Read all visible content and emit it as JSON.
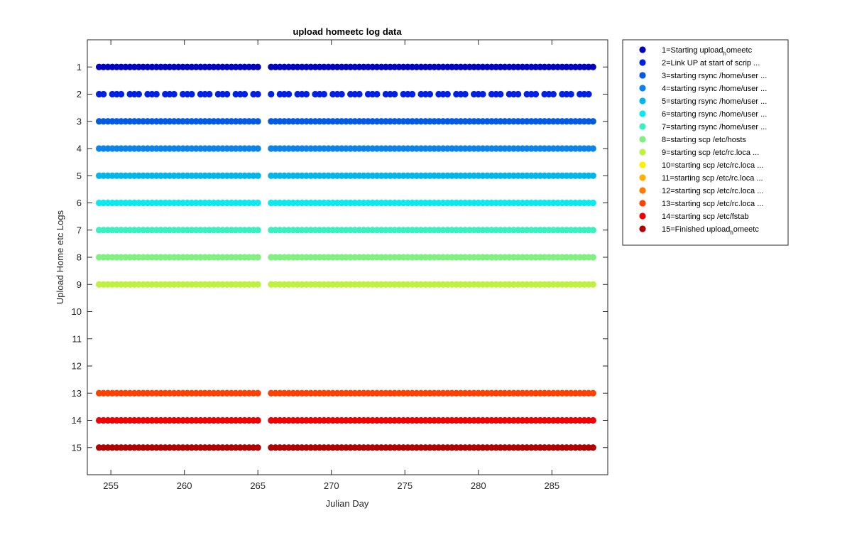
{
  "chart_data": {
    "type": "scatter",
    "title": "upload homeetc log data",
    "xlabel": "Julian Day",
    "ylabel": "Upload Home etc Logs",
    "xlim": [
      253.4,
      288.8
    ],
    "ylim": [
      0,
      16
    ],
    "y_reversed": true,
    "x_ticks": [
      255,
      260,
      265,
      270,
      275,
      280,
      285
    ],
    "y_ticks": [
      1,
      2,
      3,
      4,
      5,
      6,
      7,
      8,
      9,
      10,
      11,
      12,
      13,
      14,
      15
    ],
    "grid": false,
    "legend_position": "outside-top-right",
    "x_start": 254.2,
    "x_end": 287.9,
    "x_step": 0.3,
    "x_gaps": [
      [
        265.2,
        265.9
      ]
    ],
    "series": [
      {
        "name": "1=Starting upload_homeetc",
        "y": 1,
        "color": "#0000bf"
      },
      {
        "name": "2=Link UP at start of scrip ...",
        "y": 2,
        "color": "#0020e6",
        "sparse": true
      },
      {
        "name": "3=starting rsync /home/user ...",
        "y": 3,
        "color": "#005ae8"
      },
      {
        "name": "4=starting rsync /home/user ...",
        "y": 4,
        "color": "#0a84ea"
      },
      {
        "name": "5=starting rsync /home/user ...",
        "y": 5,
        "color": "#00b6ea"
      },
      {
        "name": "6=starting rsync /home/user ...",
        "y": 6,
        "color": "#0ae8f0"
      },
      {
        "name": "7=starting rsync /home/user ...",
        "y": 7,
        "color": "#38f0c0"
      },
      {
        "name": "8=starting scp /etc/hosts",
        "y": 8,
        "color": "#80f080"
      },
      {
        "name": "9=starting scp /etc/rc.loca ...",
        "y": 9,
        "color": "#c0f040"
      },
      {
        "name": "10=starting scp /etc/rc.loca ...",
        "y": 10,
        "color": "#fff000",
        "empty": true
      },
      {
        "name": "11=starting scp /etc/rc.loca ...",
        "y": 11,
        "color": "#ffb000",
        "empty": true
      },
      {
        "name": "12=starting scp /etc/rc.loca ...",
        "y": 12,
        "color": "#ff7a00",
        "empty": true
      },
      {
        "name": "13=starting scp /etc/rc.loca ...",
        "y": 13,
        "color": "#ff4000"
      },
      {
        "name": "14=starting scp /etc/fstab",
        "y": 14,
        "color": "#f00000"
      },
      {
        "name": "15=Finished upload_homeetc",
        "y": 15,
        "color": "#b00000"
      }
    ]
  }
}
